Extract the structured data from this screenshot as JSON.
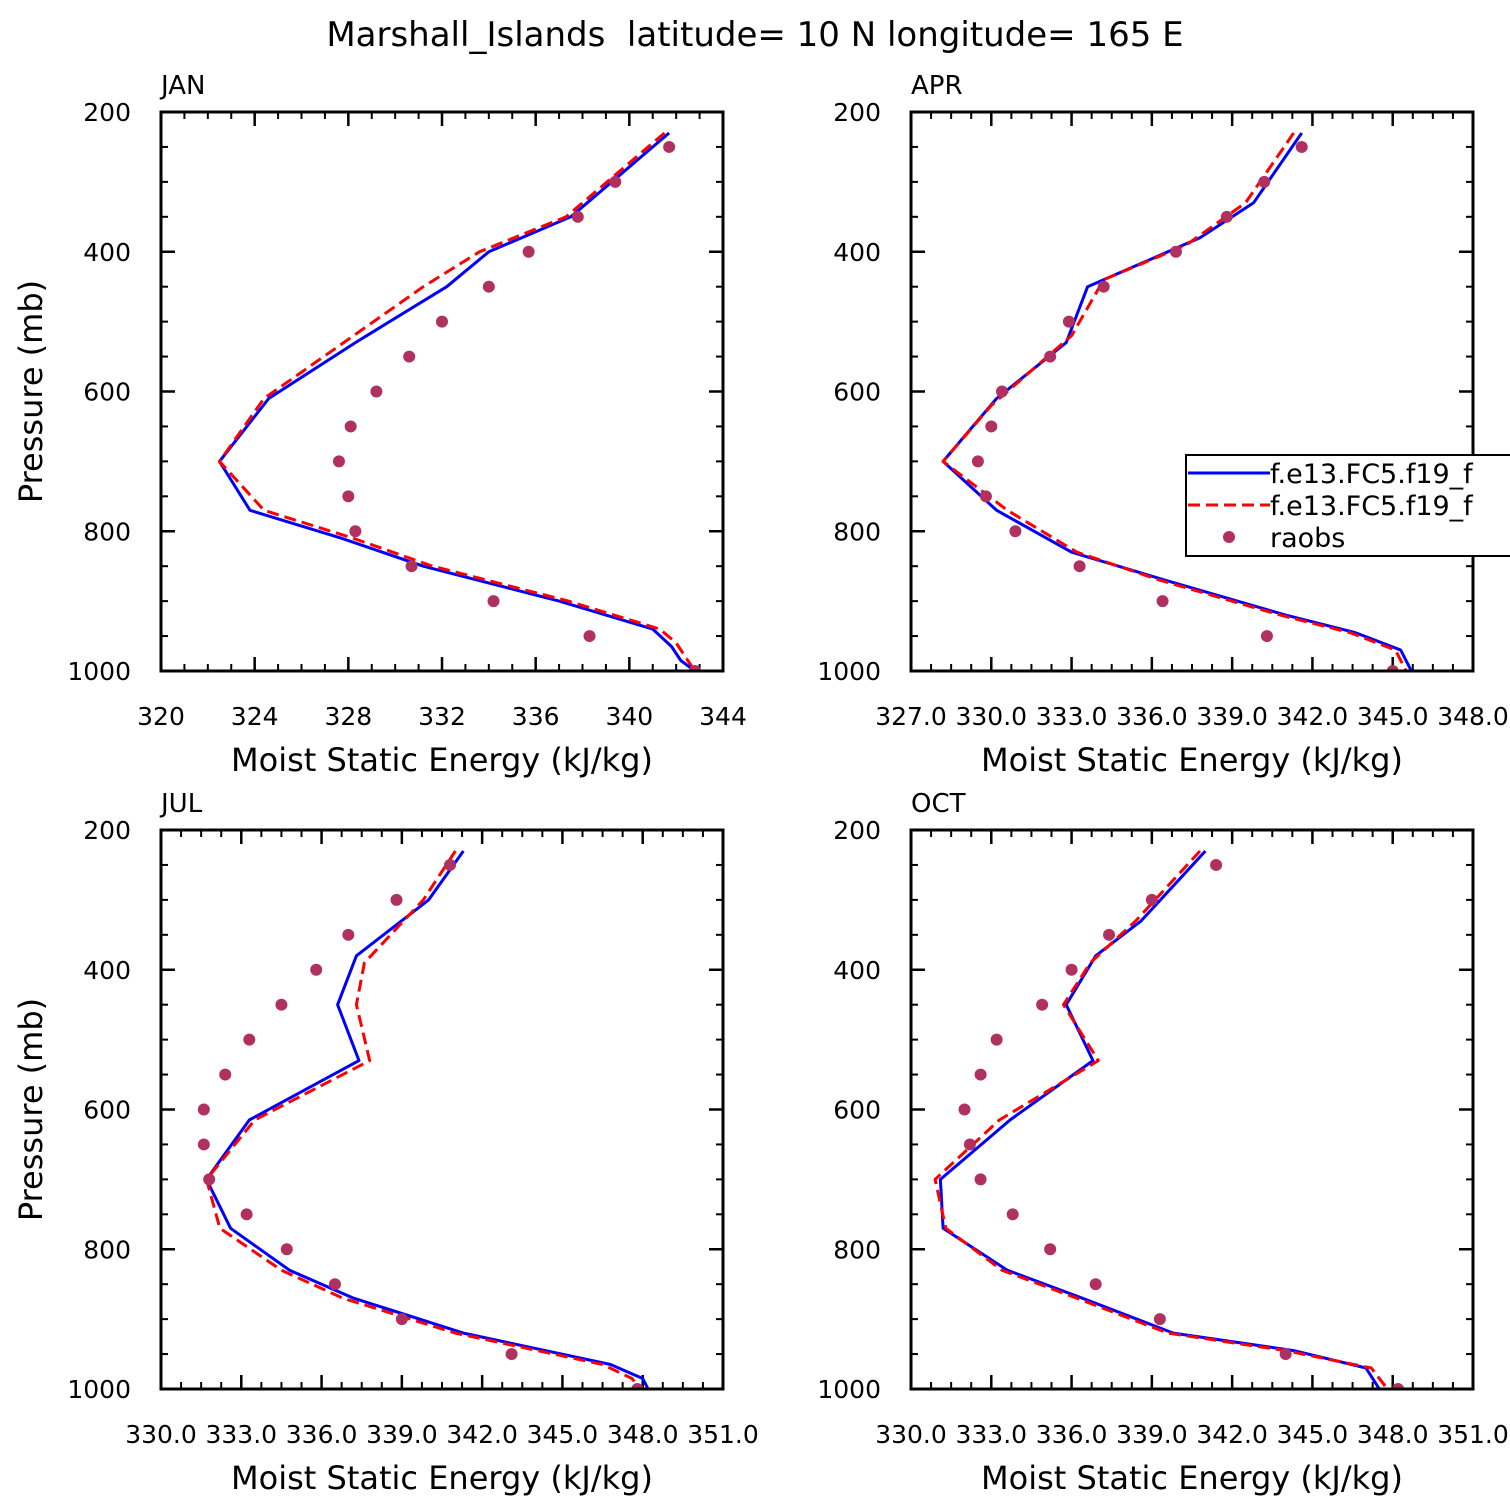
{
  "figure_title": "Marshall_Islands  latitude= 10 N longitude= 165 E",
  "legend": {
    "entries": [
      {
        "label": "f.e13.FC5.f19_f",
        "style": "solid",
        "color": "#0000ff"
      },
      {
        "label": "f.e13.FC5.f19_f",
        "style": "dashed",
        "color": "#ff0000"
      },
      {
        "label": "raobs",
        "style": "dots",
        "color": "#b03060"
      }
    ]
  },
  "colors": {
    "series_solid": "#0000ff",
    "series_dashed": "#ff0000",
    "raobs": "#b03060"
  },
  "chart_data": [
    {
      "type": "line",
      "panel": "JAN",
      "xlabel": "Moist Static Energy (kJ/kg)",
      "ylabel": "Pressure (mb)",
      "xlim": [
        320,
        344
      ],
      "ylim": [
        200,
        1000
      ],
      "y_inverted": true,
      "xticks": [
        320,
        324,
        328,
        332,
        336,
        340,
        344
      ],
      "xtick_labels": [
        "320",
        "324",
        "328",
        "332",
        "336",
        "340",
        "344"
      ],
      "yticks": [
        200,
        400,
        600,
        800,
        1000
      ],
      "ytick_labels": [
        "200",
        "400",
        "600",
        "800",
        "1000"
      ],
      "series": [
        {
          "style": "solid",
          "points": [
            [
              341.7,
              230
            ],
            [
              337.5,
              350
            ],
            [
              334.0,
              400
            ],
            [
              332.2,
              450
            ],
            [
              328.3,
              530
            ],
            [
              324.6,
              610
            ],
            [
              322.5,
              700
            ],
            [
              323.8,
              770
            ],
            [
              327.7,
              810
            ],
            [
              331.2,
              850
            ],
            [
              337.0,
              900
            ],
            [
              341.0,
              940
            ],
            [
              341.8,
              965
            ],
            [
              342.2,
              985
            ],
            [
              342.8,
              1000
            ]
          ]
        },
        {
          "style": "dashed",
          "points": [
            [
              341.5,
              230
            ],
            [
              337.3,
              350
            ],
            [
              333.6,
              400
            ],
            [
              331.2,
              450
            ],
            [
              327.8,
              530
            ],
            [
              324.4,
              610
            ],
            [
              322.5,
              700
            ],
            [
              324.4,
              770
            ],
            [
              328.2,
              810
            ],
            [
              331.6,
              850
            ],
            [
              337.4,
              900
            ],
            [
              341.3,
              940
            ],
            [
              342.0,
              960
            ],
            [
              342.4,
              980
            ],
            [
              342.8,
              1000
            ]
          ]
        },
        {
          "style": "dots",
          "points": [
            [
              341.7,
              250
            ],
            [
              339.4,
              300
            ],
            [
              337.8,
              350
            ],
            [
              335.7,
              400
            ],
            [
              334.0,
              450
            ],
            [
              332.0,
              500
            ],
            [
              330.6,
              550
            ],
            [
              329.2,
              600
            ],
            [
              328.1,
              650
            ],
            [
              327.6,
              700
            ],
            [
              328.0,
              750
            ],
            [
              328.3,
              800
            ],
            [
              330.7,
              850
            ],
            [
              334.2,
              900
            ],
            [
              338.3,
              950
            ],
            [
              342.8,
              1000
            ]
          ]
        }
      ]
    },
    {
      "type": "line",
      "panel": "APR",
      "xlabel": "Moist Static Energy (kJ/kg)",
      "ylabel": "",
      "xlim": [
        327,
        348
      ],
      "ylim": [
        200,
        1000
      ],
      "y_inverted": true,
      "xticks": [
        327,
        330,
        333,
        336,
        339,
        342,
        345,
        348
      ],
      "xtick_labels": [
        "327.0",
        "330.0",
        "333.0",
        "336.0",
        "339.0",
        "342.0",
        "345.0",
        "348.0"
      ],
      "yticks": [
        200,
        400,
        600,
        800,
        1000
      ],
      "ytick_labels": [
        "200",
        "400",
        "600",
        "800",
        "1000"
      ],
      "series": [
        {
          "style": "solid",
          "points": [
            [
              341.6,
              230
            ],
            [
              339.8,
              330
            ],
            [
              337.8,
              380
            ],
            [
              333.6,
              450
            ],
            [
              332.8,
              530
            ],
            [
              330.2,
              610
            ],
            [
              328.2,
              700
            ],
            [
              330.2,
              770
            ],
            [
              333.0,
              830
            ],
            [
              336.5,
              870
            ],
            [
              341.0,
              920
            ],
            [
              343.6,
              945
            ],
            [
              345.3,
              970
            ],
            [
              345.7,
              1000
            ]
          ]
        },
        {
          "style": "dashed",
          "points": [
            [
              341.3,
              230
            ],
            [
              339.5,
              330
            ],
            [
              337.3,
              390
            ],
            [
              334.2,
              440
            ],
            [
              333.0,
              520
            ],
            [
              330.0,
              620
            ],
            [
              328.2,
              700
            ],
            [
              330.6,
              770
            ],
            [
              333.2,
              830
            ],
            [
              336.3,
              870
            ],
            [
              340.8,
              920
            ],
            [
              343.4,
              945
            ],
            [
              345.1,
              970
            ],
            [
              345.5,
              1000
            ]
          ]
        },
        {
          "style": "dots",
          "points": [
            [
              341.6,
              250
            ],
            [
              340.2,
              300
            ],
            [
              338.8,
              350
            ],
            [
              336.9,
              400
            ],
            [
              334.2,
              450
            ],
            [
              332.9,
              500
            ],
            [
              332.2,
              550
            ],
            [
              330.4,
              600
            ],
            [
              330.0,
              650
            ],
            [
              329.5,
              700
            ],
            [
              329.8,
              750
            ],
            [
              330.9,
              800
            ],
            [
              333.3,
              850
            ],
            [
              336.4,
              900
            ],
            [
              340.3,
              950
            ],
            [
              345.0,
              1000
            ]
          ]
        }
      ]
    },
    {
      "type": "line",
      "panel": "JUL",
      "xlabel": "Moist Static Energy (kJ/kg)",
      "ylabel": "Pressure (mb)",
      "xlim": [
        330,
        351
      ],
      "ylim": [
        200,
        1000
      ],
      "y_inverted": true,
      "xticks": [
        330,
        333,
        336,
        339,
        342,
        345,
        348,
        351
      ],
      "xtick_labels": [
        "330.0",
        "333.0",
        "336.0",
        "339.0",
        "342.0",
        "345.0",
        "348.0",
        "351.0"
      ],
      "yticks": [
        200,
        400,
        600,
        800,
        1000
      ],
      "ytick_labels": [
        "200",
        "400",
        "600",
        "800",
        "1000"
      ],
      "series": [
        {
          "style": "solid",
          "points": [
            [
              341.3,
              230
            ],
            [
              340.0,
              300
            ],
            [
              337.3,
              380
            ],
            [
              336.6,
              450
            ],
            [
              337.4,
              530
            ],
            [
              333.3,
              615
            ],
            [
              331.7,
              700
            ],
            [
              332.6,
              770
            ],
            [
              334.8,
              830
            ],
            [
              337.2,
              870
            ],
            [
              341.3,
              920
            ],
            [
              346.8,
              965
            ],
            [
              348.0,
              985
            ],
            [
              348.2,
              1000
            ]
          ]
        },
        {
          "style": "dashed",
          "points": [
            [
              341.0,
              230
            ],
            [
              339.8,
              300
            ],
            [
              337.6,
              390
            ],
            [
              337.3,
              450
            ],
            [
              337.8,
              530
            ],
            [
              333.5,
              615
            ],
            [
              331.7,
              700
            ],
            [
              332.2,
              770
            ],
            [
              334.5,
              830
            ],
            [
              336.8,
              870
            ],
            [
              341.0,
              920
            ],
            [
              346.5,
              965
            ],
            [
              347.6,
              985
            ],
            [
              347.9,
              1000
            ]
          ]
        },
        {
          "style": "dots",
          "points": [
            [
              340.8,
              250
            ],
            [
              338.8,
              300
            ],
            [
              337.0,
              350
            ],
            [
              335.8,
              400
            ],
            [
              334.5,
              450
            ],
            [
              333.3,
              500
            ],
            [
              332.4,
              550
            ],
            [
              331.6,
              600
            ],
            [
              331.6,
              650
            ],
            [
              331.8,
              700
            ],
            [
              333.2,
              750
            ],
            [
              334.7,
              800
            ],
            [
              336.5,
              850
            ],
            [
              339.0,
              900
            ],
            [
              343.1,
              950
            ],
            [
              347.8,
              1000
            ]
          ]
        }
      ]
    },
    {
      "type": "line",
      "panel": "OCT",
      "xlabel": "Moist Static Energy (kJ/kg)",
      "ylabel": "",
      "xlim": [
        330,
        351
      ],
      "ylim": [
        200,
        1000
      ],
      "y_inverted": true,
      "xticks": [
        330,
        333,
        336,
        339,
        342,
        345,
        348,
        351
      ],
      "xtick_labels": [
        "330.0",
        "333.0",
        "336.0",
        "339.0",
        "342.0",
        "345.0",
        "348.0",
        "351.0"
      ],
      "yticks": [
        200,
        400,
        600,
        800,
        1000
      ],
      "ytick_labels": [
        "200",
        "400",
        "600",
        "800",
        "1000"
      ],
      "series": [
        {
          "style": "solid",
          "points": [
            [
              341.0,
              230
            ],
            [
              338.6,
              330
            ],
            [
              336.9,
              380
            ],
            [
              335.8,
              450
            ],
            [
              336.8,
              530
            ],
            [
              333.7,
              615
            ],
            [
              331.1,
              700
            ],
            [
              331.2,
              770
            ],
            [
              333.6,
              830
            ],
            [
              336.4,
              870
            ],
            [
              339.8,
              920
            ],
            [
              344.3,
              945
            ],
            [
              347.0,
              970
            ],
            [
              347.5,
              1000
            ]
          ]
        },
        {
          "style": "dashed",
          "points": [
            [
              340.8,
              230
            ],
            [
              338.4,
              330
            ],
            [
              336.7,
              390
            ],
            [
              335.7,
              450
            ],
            [
              337.0,
              530
            ],
            [
              333.3,
              615
            ],
            [
              330.9,
              700
            ],
            [
              331.3,
              770
            ],
            [
              333.4,
              830
            ],
            [
              336.2,
              870
            ],
            [
              339.6,
              920
            ],
            [
              344.0,
              945
            ],
            [
              347.2,
              970
            ],
            [
              347.8,
              1000
            ]
          ]
        },
        {
          "style": "dots",
          "points": [
            [
              341.4,
              250
            ],
            [
              339.0,
              300
            ],
            [
              337.4,
              350
            ],
            [
              336.0,
              400
            ],
            [
              334.9,
              450
            ],
            [
              333.2,
              500
            ],
            [
              332.6,
              550
            ],
            [
              332.0,
              600
            ],
            [
              332.2,
              650
            ],
            [
              332.6,
              700
            ],
            [
              333.8,
              750
            ],
            [
              335.2,
              800
            ],
            [
              336.9,
              850
            ],
            [
              339.3,
              900
            ],
            [
              344.0,
              950
            ],
            [
              348.2,
              1000
            ]
          ]
        }
      ]
    }
  ]
}
